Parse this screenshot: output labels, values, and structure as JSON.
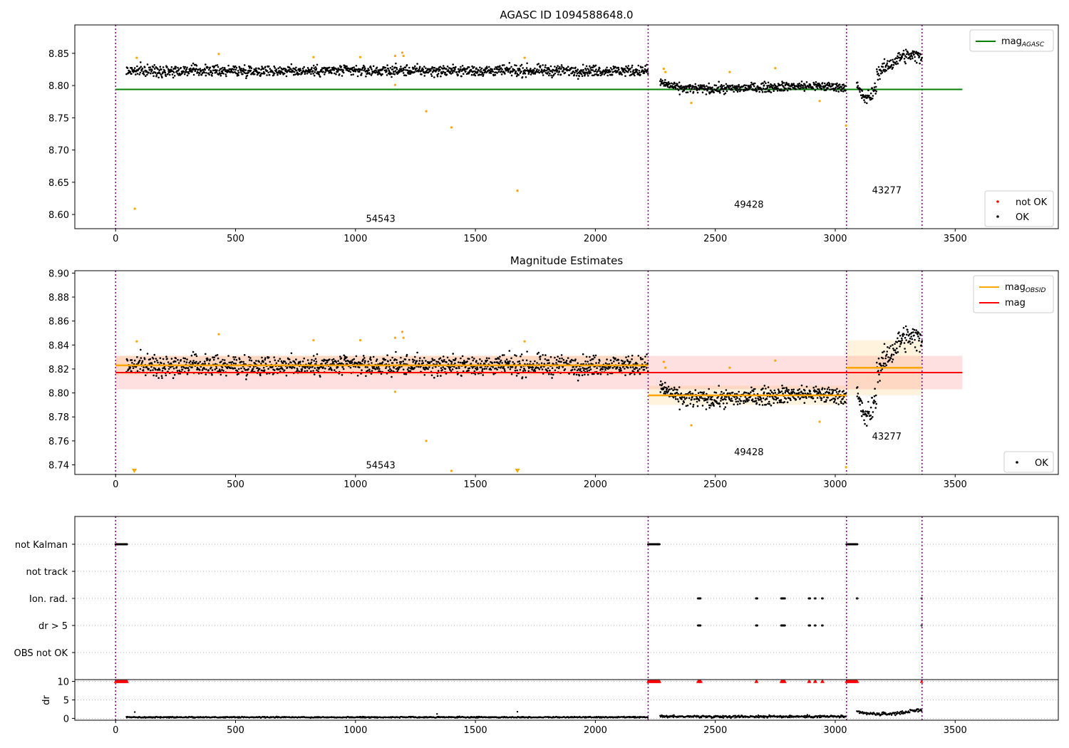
{
  "chart_data": [
    {
      "panel": "top",
      "type": "scatter",
      "title": "AGASC ID 1094588648.0",
      "xlim": [
        -170,
        3930
      ],
      "ylim": [
        8.578,
        8.894
      ],
      "xticks": [
        0,
        500,
        1000,
        1500,
        2000,
        2500,
        3000,
        3500
      ],
      "yticks": [
        8.6,
        8.65,
        8.7,
        8.75,
        8.8,
        8.85
      ],
      "grid": false,
      "obs_boundaries": [
        0,
        2220,
        3047,
        3362
      ],
      "obs_labels": [
        {
          "text": "54543",
          "x": 1105,
          "y": 8.594
        },
        {
          "text": "49428",
          "x": 2640,
          "y": 8.616
        },
        {
          "text": "43277",
          "x": 3215,
          "y": 8.638
        }
      ],
      "lines": [
        {
          "name": "mag_AGASC",
          "x0": 0,
          "x1": 3530,
          "y": 8.794,
          "color": "#008000"
        }
      ],
      "legend_top": {
        "position": "top-right",
        "entries": [
          {
            "label": "mag",
            "sub": "AGASC",
            "color": "#008000",
            "kind": "line"
          }
        ]
      },
      "legend_bottom": {
        "position": "bottom-right",
        "entries": [
          {
            "label": "not OK",
            "color": "#ff0000",
            "kind": "point"
          },
          {
            "label": "OK",
            "color": "#000000",
            "kind": "point"
          }
        ]
      },
      "segments": [
        {
          "x0": 45,
          "x1": 2220,
          "mean": 8.823,
          "noise": 0.008
        },
        {
          "x0": 2270,
          "x1": 3045,
          "mean": 8.797,
          "noise": 0.007
        },
        {
          "x0": 3090,
          "x1": 3362,
          "mean": 8.815,
          "noise": 0.01
        }
      ],
      "outliers": [
        {
          "x": 80,
          "y": 8.609
        },
        {
          "x": 88,
          "y": 8.843
        },
        {
          "x": 430,
          "y": 8.849
        },
        {
          "x": 825,
          "y": 8.844
        },
        {
          "x": 1020,
          "y": 8.844
        },
        {
          "x": 1165,
          "y": 8.846
        },
        {
          "x": 1165,
          "y": 8.801
        },
        {
          "x": 1195,
          "y": 8.851
        },
        {
          "x": 1200,
          "y": 8.846
        },
        {
          "x": 1295,
          "y": 8.76
        },
        {
          "x": 1400,
          "y": 8.735
        },
        {
          "x": 1675,
          "y": 8.637
        },
        {
          "x": 1705,
          "y": 8.843
        },
        {
          "x": 2285,
          "y": 8.826
        },
        {
          "x": 2292,
          "y": 8.821
        },
        {
          "x": 2400,
          "y": 8.773
        },
        {
          "x": 2560,
          "y": 8.821
        },
        {
          "x": 2750,
          "y": 8.827
        },
        {
          "x": 2935,
          "y": 8.776
        },
        {
          "x": 3045,
          "y": 8.738
        }
      ]
    },
    {
      "panel": "middle",
      "type": "scatter",
      "title": "Magnitude Estimates",
      "xlim": [
        -170,
        3930
      ],
      "ylim": [
        8.732,
        8.902
      ],
      "xticks": [
        0,
        500,
        1000,
        1500,
        2000,
        2500,
        3000,
        3500
      ],
      "yticks": [
        8.74,
        8.76,
        8.78,
        8.8,
        8.82,
        8.84,
        8.86,
        8.88,
        8.9
      ],
      "grid": false,
      "obs_boundaries": [
        0,
        2220,
        3047,
        3362
      ],
      "obs_labels": [
        {
          "text": "54543",
          "x": 1105,
          "y": 8.74
        },
        {
          "text": "49428",
          "x": 2640,
          "y": 8.751
        },
        {
          "text": "43277",
          "x": 3215,
          "y": 8.764
        }
      ],
      "mag": {
        "value": 8.817,
        "band": [
          8.803,
          8.831
        ],
        "x0": 0,
        "x1": 3530,
        "color": "#ff0000"
      },
      "mag_obsid": [
        {
          "x0": 0,
          "x1": 2220,
          "value": 8.823,
          "band": [
            8.815,
            8.831
          ]
        },
        {
          "x0": 2220,
          "x1": 3047,
          "value": 8.798,
          "band": [
            8.79,
            8.806
          ]
        },
        {
          "x0": 3047,
          "x1": 3362,
          "value": 8.821,
          "band": [
            8.798,
            8.844
          ]
        }
      ],
      "legend_top": {
        "position": "top-right",
        "entries": [
          {
            "label": "mag",
            "sub": "OBSID",
            "color": "#ffa500",
            "kind": "line"
          },
          {
            "label": "mag",
            "sub": "",
            "color": "#ff0000",
            "kind": "line"
          }
        ]
      },
      "legend_bottom": {
        "position": "bottom-right",
        "entries": [
          {
            "label": "OK",
            "color": "#000000",
            "kind": "point"
          }
        ]
      },
      "down_markers": [
        {
          "x": 78
        },
        {
          "x": 1675
        }
      ]
    },
    {
      "panel": "flags",
      "type": "scatter",
      "xlim": [
        -170,
        3930
      ],
      "xticks": [
        0,
        500,
        1000,
        1500,
        2000,
        2500,
        3000,
        3500
      ],
      "obs_boundaries": [
        0,
        2220,
        3047,
        3362
      ],
      "flag_labels": [
        "not Kalman",
        "not track",
        "Ion. rad.",
        "dr > 5",
        "OBS not OK"
      ],
      "flags": {
        "not Kalman": [
          [
            0,
            48
          ],
          [
            2220,
            2268
          ],
          [
            3047,
            3092
          ]
        ],
        "not track": [],
        "Ion. rad.": [
          [
            2428,
            2440
          ],
          [
            2670,
            2675
          ],
          [
            2775,
            2792
          ],
          [
            2890,
            2895
          ],
          [
            2915,
            2918
          ],
          [
            2945,
            2948
          ],
          [
            3090,
            3093
          ],
          [
            3360,
            3362
          ]
        ],
        "dr > 5": [
          [
            2428,
            2440
          ],
          [
            2670,
            2675
          ],
          [
            2775,
            2792
          ],
          [
            2890,
            2895
          ],
          [
            2915,
            2918
          ],
          [
            2945,
            2948
          ],
          [
            3360,
            3362
          ]
        ],
        "OBS not OK": []
      },
      "dr": {
        "ylabel": "dr",
        "yticks": [
          0,
          5,
          10
        ],
        "ylim": [
          -0.5,
          10.5
        ],
        "clip": 10,
        "clipped_ranges": [
          [
            0,
            48
          ],
          [
            2220,
            2268
          ],
          [
            2428,
            2440
          ],
          [
            2670,
            2675
          ],
          [
            2775,
            2792
          ],
          [
            2890,
            2895
          ],
          [
            2915,
            2918
          ],
          [
            2945,
            2948
          ],
          [
            3047,
            3092
          ],
          [
            3360,
            3362
          ]
        ],
        "segments": [
          {
            "x0": 45,
            "x1": 2220,
            "mean": 0.3,
            "noise": 0.15
          },
          {
            "x0": 2270,
            "x1": 3045,
            "mean": 0.5,
            "noise": 0.3
          },
          {
            "x0": 3090,
            "x1": 3362,
            "mean": 1.3,
            "noise": 0.4
          }
        ],
        "spikes": [
          {
            "x": 80,
            "y": 1.7
          },
          {
            "x": 1675,
            "y": 1.8
          },
          {
            "x": 1340,
            "y": 1.2
          }
        ]
      }
    }
  ]
}
